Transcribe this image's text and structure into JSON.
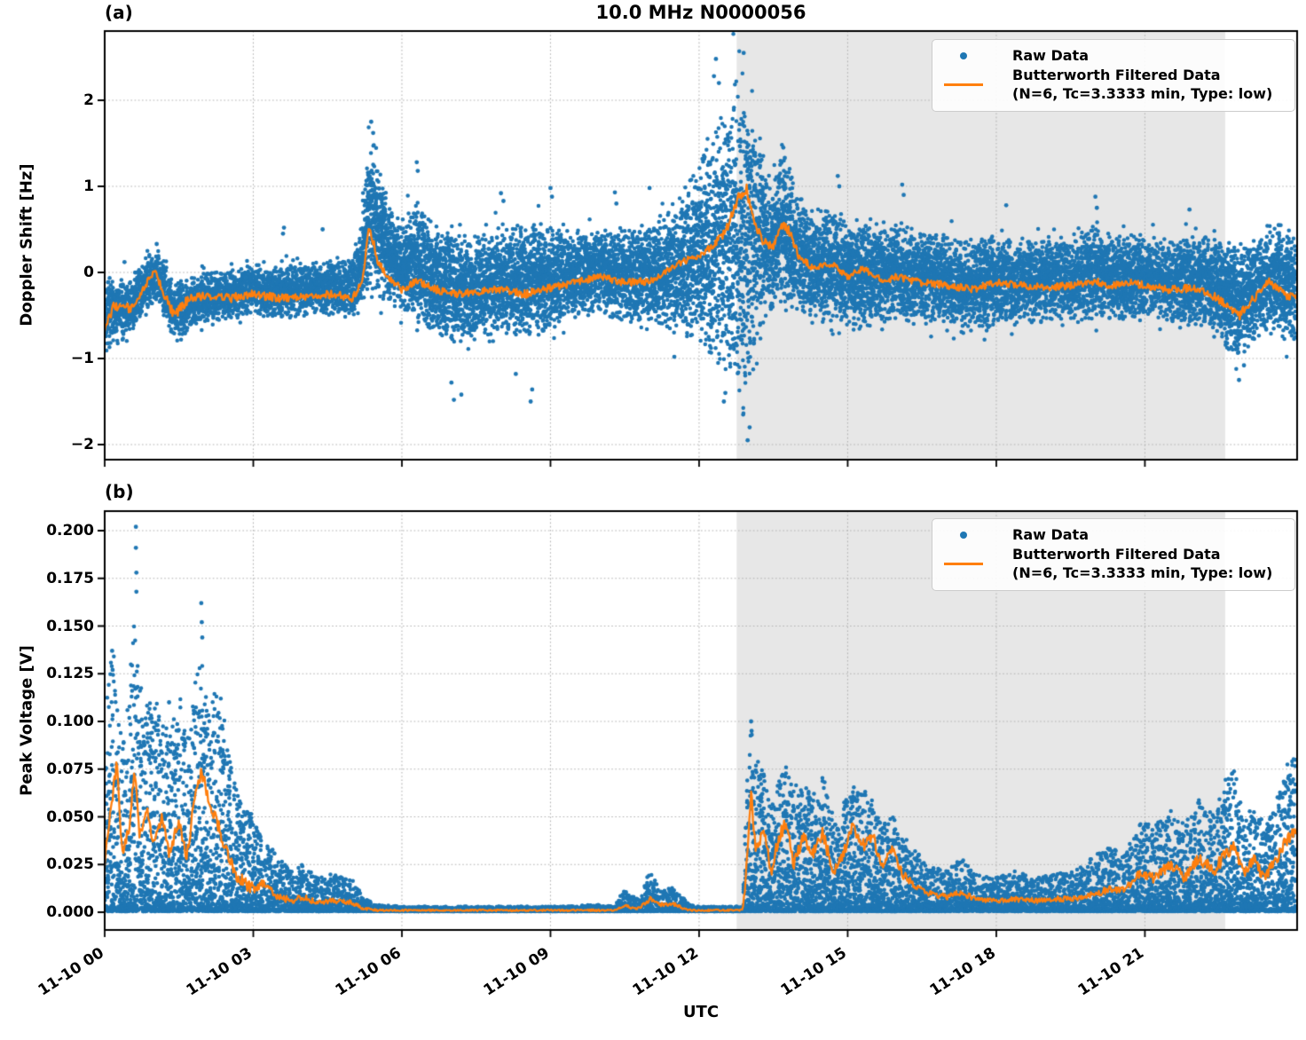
{
  "figure": {
    "title": "10.0 MHz N0000056",
    "xlabel": "UTC",
    "panel_a_tag": "(a)",
    "panel_b_tag": "(b)",
    "ylabel_a": "Doppler Shift [Hz]",
    "ylabel_b": "Peak Voltage [V]"
  },
  "legend": {
    "raw_label": "Raw Data",
    "filtered_label": "Butterworth Filtered Data\n(N=6, Tc=3.3333 min, Type: low)"
  },
  "colors": {
    "raw": "#1f77b4",
    "filtered": "#ff7f0e",
    "shade": "#e7e7e7",
    "grid": "#b3b3b3",
    "spine": "#000000"
  },
  "chart_data": [
    {
      "id": "a",
      "type": "scatter",
      "title": "10.0 MHz N0000056",
      "ylabel": "Doppler Shift [Hz]",
      "xlabel": "UTC",
      "ylim": [
        -2.18,
        2.8
      ],
      "yticks": [
        -2,
        -1,
        0,
        1,
        2
      ],
      "ytick_labels": [
        "−2",
        "−1",
        "0",
        "1",
        "2"
      ],
      "xlim_hours": [
        0,
        24.07
      ],
      "xticks_hours": [
        0,
        3,
        6,
        9,
        12,
        15,
        18,
        21
      ],
      "xtick_labels": [
        "11-10 00",
        "11-10 03",
        "11-10 06",
        "11-10 09",
        "11-10 12",
        "11-10 15",
        "11-10 18",
        "11-10 21"
      ],
      "show_xtick_labels": false,
      "grid": true,
      "legend_position": "upper right",
      "shaded_region_hours": [
        12.76,
        22.62
      ],
      "seed": 7,
      "series": {
        "t": [
          0.0,
          0.2,
          0.5,
          0.8,
          1.0,
          1.2,
          1.4,
          1.7,
          2.0,
          2.5,
          3.0,
          3.5,
          4.0,
          4.5,
          5.0,
          5.2,
          5.35,
          5.5,
          5.7,
          6.0,
          6.3,
          6.6,
          7.0,
          7.5,
          8.0,
          8.5,
          9.0,
          9.3,
          9.6,
          10.0,
          10.5,
          11.0,
          11.3,
          11.6,
          12.0,
          12.3,
          12.6,
          12.8,
          12.95,
          13.1,
          13.3,
          13.5,
          13.7,
          13.85,
          14.0,
          14.3,
          14.7,
          15.0,
          15.3,
          15.7,
          16.0,
          16.5,
          17.0,
          17.5,
          18.0,
          18.5,
          19.0,
          19.5,
          20.0,
          20.3,
          20.7,
          21.0,
          21.5,
          22.0,
          22.3,
          22.6,
          22.9,
          23.2,
          23.5,
          23.8,
          24.05
        ],
        "envelope_low": [
          -0.95,
          -0.85,
          -0.75,
          -0.5,
          -0.35,
          -0.5,
          -0.8,
          -0.7,
          -0.6,
          -0.55,
          -0.5,
          -0.55,
          -0.5,
          -0.5,
          -0.55,
          -0.4,
          -0.25,
          -0.3,
          -0.4,
          -0.5,
          -0.6,
          -0.7,
          -0.9,
          -0.8,
          -0.7,
          -0.8,
          -0.7,
          -0.6,
          -0.55,
          -0.5,
          -0.6,
          -0.6,
          -0.7,
          -0.8,
          -0.9,
          -1.1,
          -1.3,
          -1.6,
          -1.9,
          -1.0,
          -0.6,
          -0.5,
          -0.5,
          -0.5,
          -0.5,
          -0.6,
          -0.6,
          -0.6,
          -0.7,
          -0.6,
          -0.6,
          -0.6,
          -0.65,
          -0.7,
          -0.6,
          -0.6,
          -0.6,
          -0.55,
          -0.6,
          -0.6,
          -0.6,
          -0.55,
          -0.6,
          -0.65,
          -0.7,
          -0.85,
          -1.0,
          -0.8,
          -0.7,
          -0.8,
          -0.9
        ],
        "envelope_high": [
          -0.05,
          -0.05,
          -0.1,
          0.2,
          0.3,
          0.15,
          -0.1,
          -0.05,
          0.05,
          0.05,
          0.1,
          0.1,
          0.1,
          0.15,
          0.2,
          0.6,
          1.8,
          1.3,
          0.9,
          0.6,
          0.9,
          0.6,
          0.5,
          0.45,
          0.5,
          0.6,
          0.55,
          0.5,
          0.5,
          0.55,
          0.5,
          0.6,
          0.7,
          0.9,
          1.3,
          1.7,
          2.0,
          2.3,
          2.55,
          2.1,
          1.3,
          1.1,
          1.5,
          1.2,
          0.9,
          0.7,
          0.8,
          0.6,
          0.7,
          0.5,
          0.6,
          0.5,
          0.45,
          0.4,
          0.45,
          0.4,
          0.45,
          0.4,
          0.6,
          0.45,
          0.5,
          0.45,
          0.4,
          0.4,
          0.45,
          0.4,
          0.35,
          0.4,
          0.5,
          0.55,
          0.5
        ],
        "filtered": [
          -0.62,
          -0.38,
          -0.42,
          -0.18,
          0.02,
          -0.25,
          -0.5,
          -0.3,
          -0.28,
          -0.3,
          -0.25,
          -0.3,
          -0.28,
          -0.25,
          -0.3,
          -0.1,
          0.55,
          0.15,
          -0.05,
          -0.2,
          -0.1,
          -0.18,
          -0.25,
          -0.22,
          -0.2,
          -0.25,
          -0.18,
          -0.15,
          -0.1,
          -0.05,
          -0.12,
          -0.1,
          0.0,
          0.1,
          0.2,
          0.3,
          0.55,
          0.85,
          1.0,
          0.6,
          0.35,
          0.3,
          0.55,
          0.45,
          0.2,
          0.05,
          0.1,
          -0.05,
          0.05,
          -0.1,
          -0.05,
          -0.12,
          -0.15,
          -0.2,
          -0.12,
          -0.15,
          -0.18,
          -0.15,
          -0.1,
          -0.15,
          -0.12,
          -0.15,
          -0.2,
          -0.18,
          -0.25,
          -0.35,
          -0.5,
          -0.3,
          -0.1,
          -0.25,
          -0.3
        ],
        "raw_outliers": [
          [
            0.4,
            0.12
          ],
          [
            1.05,
            0.33
          ],
          [
            3.6,
            0.45
          ],
          [
            3.62,
            0.52
          ],
          [
            4.4,
            0.5
          ],
          [
            5.38,
            1.75
          ],
          [
            5.42,
            1.62
          ],
          [
            6.3,
            1.28
          ],
          [
            6.32,
            1.18
          ],
          [
            7.0,
            -1.28
          ],
          [
            7.05,
            -1.48
          ],
          [
            7.2,
            -1.42
          ],
          [
            8.0,
            0.92
          ],
          [
            8.05,
            0.83
          ],
          [
            8.3,
            -1.18
          ],
          [
            8.6,
            -1.5
          ],
          [
            8.63,
            -1.36
          ],
          [
            9.0,
            0.98
          ],
          [
            9.03,
            0.88
          ],
          [
            10.3,
            0.93
          ],
          [
            10.33,
            0.8
          ],
          [
            11.0,
            0.98
          ],
          [
            11.5,
            -0.98
          ],
          [
            12.3,
            2.28
          ],
          [
            12.34,
            2.48
          ],
          [
            12.4,
            2.2
          ],
          [
            12.5,
            -1.5
          ],
          [
            12.53,
            -1.4
          ],
          [
            12.9,
            2.55
          ],
          [
            12.98,
            -1.95
          ],
          [
            13.02,
            -1.8
          ],
          [
            13.7,
            1.45
          ],
          [
            13.73,
            1.33
          ],
          [
            14.8,
            1.12
          ],
          [
            14.83,
            1.0
          ],
          [
            16.1,
            1.02
          ],
          [
            16.13,
            0.9
          ],
          [
            18.2,
            0.78
          ],
          [
            20.0,
            0.88
          ],
          [
            20.03,
            0.75
          ],
          [
            21.9,
            0.73
          ],
          [
            22.9,
            -1.25
          ],
          [
            23.0,
            -1.08
          ],
          [
            23.7,
            0.55
          ]
        ]
      }
    },
    {
      "id": "b",
      "type": "scatter",
      "title": "10.0 MHz N0000056",
      "ylabel": "Peak Voltage [V]",
      "xlabel": "UTC",
      "ylim": [
        -0.009,
        0.21
      ],
      "yticks": [
        0,
        0.025,
        0.05,
        0.075,
        0.1,
        0.125,
        0.15,
        0.175,
        0.2
      ],
      "ytick_labels": [
        "0.000",
        "0.025",
        "0.050",
        "0.075",
        "0.100",
        "0.125",
        "0.150",
        "0.175",
        "0.200"
      ],
      "xlim_hours": [
        0,
        24.07
      ],
      "xticks_hours": [
        0,
        3,
        6,
        9,
        12,
        15,
        18,
        21
      ],
      "xtick_labels": [
        "11-10 00",
        "11-10 03",
        "11-10 06",
        "11-10 09",
        "11-10 12",
        "11-10 15",
        "11-10 18",
        "11-10 21"
      ],
      "show_xtick_labels": true,
      "grid": true,
      "legend_position": "upper right",
      "shaded_region_hours": [
        12.76,
        22.62
      ],
      "seed": 11,
      "envelope_low_const": 0.0005,
      "series": {
        "t": [
          0.0,
          0.1,
          0.25,
          0.35,
          0.5,
          0.6,
          0.7,
          0.85,
          1.0,
          1.15,
          1.3,
          1.5,
          1.65,
          1.8,
          1.95,
          2.1,
          2.3,
          2.5,
          2.7,
          3.0,
          3.2,
          3.5,
          3.8,
          4.0,
          4.3,
          4.6,
          5.0,
          5.2,
          5.5,
          6.0,
          7.0,
          8.0,
          9.0,
          10.0,
          10.3,
          10.5,
          10.8,
          11.0,
          11.2,
          11.5,
          11.8,
          12.0,
          12.5,
          12.88,
          12.95,
          13.05,
          13.15,
          13.3,
          13.45,
          13.6,
          13.75,
          13.9,
          14.1,
          14.3,
          14.5,
          14.7,
          14.9,
          15.1,
          15.3,
          15.5,
          15.7,
          15.9,
          16.1,
          16.3,
          16.6,
          17.0,
          17.3,
          17.6,
          18.0,
          18.4,
          18.8,
          19.2,
          19.6,
          20.0,
          20.3,
          20.6,
          20.9,
          21.2,
          21.5,
          21.8,
          22.1,
          22.4,
          22.6,
          22.8,
          23.0,
          23.2,
          23.4,
          23.6,
          23.8,
          24.0
        ],
        "envelope_high": [
          0.1,
          0.13,
          0.14,
          0.09,
          0.12,
          0.155,
          0.12,
          0.11,
          0.115,
          0.1,
          0.095,
          0.115,
          0.09,
          0.12,
          0.135,
          0.105,
          0.12,
          0.09,
          0.06,
          0.05,
          0.038,
          0.03,
          0.022,
          0.025,
          0.018,
          0.02,
          0.018,
          0.008,
          0.004,
          0.003,
          0.003,
          0.003,
          0.003,
          0.004,
          0.003,
          0.012,
          0.006,
          0.022,
          0.012,
          0.013,
          0.004,
          0.003,
          0.003,
          0.003,
          0.06,
          0.101,
          0.08,
          0.075,
          0.055,
          0.07,
          0.08,
          0.065,
          0.07,
          0.06,
          0.075,
          0.05,
          0.055,
          0.07,
          0.065,
          0.06,
          0.045,
          0.05,
          0.04,
          0.035,
          0.025,
          0.022,
          0.028,
          0.02,
          0.018,
          0.022,
          0.018,
          0.02,
          0.022,
          0.03,
          0.035,
          0.03,
          0.05,
          0.045,
          0.055,
          0.045,
          0.06,
          0.05,
          0.07,
          0.075,
          0.05,
          0.06,
          0.045,
          0.055,
          0.07,
          0.088
        ],
        "filtered": [
          0.025,
          0.05,
          0.078,
          0.03,
          0.045,
          0.075,
          0.04,
          0.055,
          0.035,
          0.05,
          0.03,
          0.048,
          0.03,
          0.055,
          0.075,
          0.06,
          0.045,
          0.028,
          0.018,
          0.012,
          0.015,
          0.008,
          0.006,
          0.008,
          0.005,
          0.006,
          0.005,
          0.002,
          0.001,
          0.001,
          0.001,
          0.001,
          0.001,
          0.001,
          0.001,
          0.003,
          0.002,
          0.007,
          0.004,
          0.004,
          0.001,
          0.001,
          0.001,
          0.001,
          0.02,
          0.063,
          0.03,
          0.045,
          0.02,
          0.038,
          0.048,
          0.025,
          0.04,
          0.03,
          0.042,
          0.02,
          0.03,
          0.045,
          0.035,
          0.04,
          0.025,
          0.032,
          0.02,
          0.015,
          0.01,
          0.008,
          0.01,
          0.007,
          0.006,
          0.007,
          0.006,
          0.007,
          0.007,
          0.01,
          0.012,
          0.012,
          0.02,
          0.018,
          0.025,
          0.018,
          0.028,
          0.022,
          0.03,
          0.035,
          0.02,
          0.028,
          0.018,
          0.025,
          0.035,
          0.042
        ],
        "raw_outliers": [
          [
            0.63,
            0.202
          ],
          [
            0.63,
            0.191
          ],
          [
            0.64,
            0.178
          ],
          [
            0.64,
            0.168
          ],
          [
            0.15,
            0.137
          ],
          [
            0.16,
            0.127
          ],
          [
            1.95,
            0.162
          ],
          [
            1.96,
            0.152
          ],
          [
            1.97,
            0.144
          ],
          [
            1.3,
            0.11
          ],
          [
            13.05,
            0.1
          ],
          [
            13.06,
            0.095
          ]
        ]
      }
    }
  ]
}
